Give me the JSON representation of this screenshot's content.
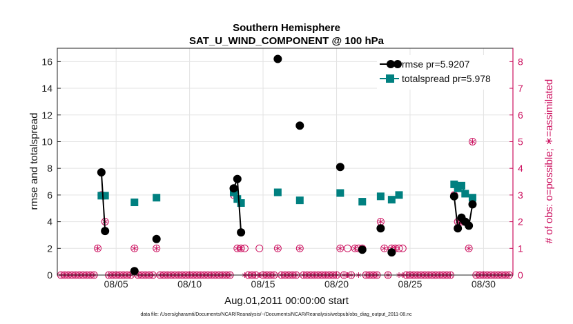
{
  "chart_data": {
    "type": "scatter",
    "title": "Southern Hemisphere",
    "subtitle": "SAT_U_WIND_COMPONENT @ 100 hPa",
    "xlabel": "Aug.01,2011 00:00:00 start",
    "ylabel": "rmse and totalspread",
    "y2label": "# of obs: o=possible; ∗=assimilated",
    "footnote": "data file: /Users/gharamti/Documents/NCAR/Reanalysis/~/Documents/NCAR/Reanalysis/webpub/obs_diag_output_2011-08.nc",
    "xlim": [
      1,
      32
    ],
    "ylim": [
      0,
      17
    ],
    "y2lim": [
      0,
      8.5
    ],
    "x_ticks": [
      5,
      10,
      15,
      20,
      25,
      30
    ],
    "x_tick_labels": [
      "08/05",
      "08/10",
      "08/15",
      "08/20",
      "08/25",
      "08/30"
    ],
    "y_ticks": [
      0,
      2,
      4,
      6,
      8,
      10,
      12,
      14,
      16
    ],
    "y_tick_labels": [
      "0",
      "2",
      "4",
      "6",
      "8",
      "10",
      "12",
      "14",
      "16"
    ],
    "y2_ticks": [
      0,
      1,
      2,
      3,
      4,
      5,
      6,
      7,
      8
    ],
    "y2_tick_labels": [
      "0",
      "1",
      "2",
      "3",
      "4",
      "5",
      "6",
      "7",
      "8"
    ],
    "grid": true,
    "legend_position": "top-right",
    "series": [
      {
        "name": "rmse",
        "legend_label": "rmse pr=5.9207",
        "color": "#000000",
        "marker": "circle",
        "x": [
          4.0,
          4.25,
          6.25,
          7.75,
          13.0,
          13.25,
          13.5,
          16.0,
          17.5,
          20.25,
          21.75,
          23.0,
          23.75,
          28.0,
          28.25,
          28.5,
          28.75,
          29.0,
          29.25
        ],
        "y": [
          7.7,
          3.3,
          0.3,
          2.7,
          6.5,
          7.2,
          3.2,
          16.2,
          11.2,
          8.1,
          1.9,
          3.5,
          1.7,
          5.9,
          3.5,
          4.3,
          4.0,
          3.7,
          5.3
        ],
        "segments": [
          [
            4.0,
            4.25
          ],
          [
            13.0,
            13.25,
            13.5
          ],
          [
            28.0,
            28.25,
            28.5,
            28.75,
            29.0,
            29.25
          ]
        ]
      },
      {
        "name": "totalspread",
        "legend_label": "totalspread pr=5.978",
        "color": "#008080",
        "marker": "square",
        "x": [
          4.0,
          4.25,
          6.25,
          7.75,
          13.0,
          13.25,
          13.5,
          16.0,
          17.5,
          20.25,
          21.75,
          23.0,
          23.75,
          24.25,
          28.0,
          28.25,
          28.5,
          28.75,
          29.25
        ],
        "y": [
          5.95,
          5.95,
          5.45,
          5.8,
          6.2,
          5.7,
          5.4,
          6.2,
          5.6,
          6.15,
          5.5,
          5.9,
          5.65,
          6.0,
          6.8,
          6.5,
          6.7,
          6.1,
          5.8
        ],
        "segments": [
          [
            28.0,
            28.25,
            28.5,
            28.75,
            29.25
          ]
        ]
      },
      {
        "name": "possible_obs",
        "color": "#cc0f5e",
        "marker": "open-circle",
        "axis": "right",
        "x": [
          1.25,
          1.5,
          1.75,
          2.0,
          2.25,
          2.5,
          2.75,
          3.0,
          3.25,
          3.5,
          3.75,
          4.0,
          4.25,
          4.5,
          4.75,
          5.0,
          5.25,
          5.5,
          5.75,
          6.0,
          6.25,
          6.5,
          6.75,
          7.0,
          7.25,
          7.5,
          7.75,
          8.0,
          8.25,
          8.5,
          8.75,
          9.0,
          9.25,
          9.5,
          9.75,
          10.0,
          10.25,
          10.5,
          10.75,
          11.0,
          11.25,
          11.5,
          11.75,
          12.0,
          12.25,
          12.5,
          12.75,
          13.0,
          13.25,
          13.5,
          13.75,
          14.0,
          14.25,
          14.5,
          14.75,
          15.0,
          15.25,
          15.5,
          15.75,
          16.0,
          16.25,
          16.5,
          16.75,
          17.0,
          17.25,
          17.5,
          17.75,
          18.0,
          18.25,
          18.5,
          18.75,
          19.0,
          19.25,
          19.5,
          19.75,
          20.0,
          20.25,
          20.5,
          20.75,
          21.0,
          21.25,
          21.5,
          21.75,
          22.0,
          22.25,
          22.5,
          22.75,
          23.0,
          23.25,
          23.5,
          23.75,
          24.0,
          24.25,
          24.5,
          24.75,
          25.0,
          25.25,
          25.5,
          25.75,
          26.0,
          26.25,
          26.5,
          26.75,
          27.0,
          27.25,
          27.5,
          27.75,
          28.0,
          28.25,
          28.5,
          28.75,
          29.0,
          29.25,
          29.5,
          29.75,
          30.0,
          30.25,
          30.5,
          30.75,
          31.0,
          31.25,
          31.5,
          31.75
        ],
        "y": [
          0,
          0,
          0,
          0,
          0,
          0,
          0,
          0,
          0,
          0,
          1,
          3,
          2,
          0,
          0,
          0,
          0,
          0,
          0,
          0,
          1,
          0,
          0,
          0,
          0,
          0,
          1,
          0,
          0,
          0,
          0,
          0,
          0,
          0,
          0,
          0,
          0,
          0,
          0,
          0,
          0,
          0,
          0,
          0,
          0,
          0,
          0,
          3,
          1,
          1,
          1,
          0,
          0,
          0,
          1,
          0,
          0,
          0,
          0,
          1,
          0,
          0,
          0,
          0,
          0,
          1,
          0,
          0,
          0,
          0,
          0,
          0,
          0,
          0,
          0,
          0,
          1,
          0,
          1,
          0,
          1,
          1,
          1,
          0,
          0,
          0,
          0,
          2,
          1,
          0,
          1,
          1,
          1,
          1,
          0,
          0,
          0,
          0,
          0,
          0,
          0,
          0,
          0,
          0,
          0,
          0,
          0,
          3,
          2,
          2,
          2,
          1,
          5,
          0,
          0,
          0,
          0,
          0,
          0,
          0,
          0,
          0,
          0
        ]
      },
      {
        "name": "assimilated_obs",
        "color": "#cc0f5e",
        "marker": "asterisk",
        "axis": "right",
        "x": [
          1.25,
          1.5,
          1.75,
          2.0,
          2.25,
          2.5,
          2.75,
          3.0,
          3.25,
          3.5,
          3.75,
          4.0,
          4.25,
          4.5,
          4.75,
          5.0,
          5.25,
          5.5,
          5.75,
          6.0,
          6.25,
          6.5,
          6.75,
          7.0,
          7.25,
          7.5,
          7.75,
          8.0,
          8.25,
          8.5,
          8.75,
          9.0,
          9.25,
          9.5,
          9.75,
          10.0,
          10.25,
          10.5,
          10.75,
          11.0,
          11.25,
          11.5,
          11.75,
          12.0,
          12.25,
          12.5,
          12.75,
          13.0,
          13.25,
          13.5,
          13.75,
          14.0,
          14.25,
          14.5,
          14.75,
          15.0,
          15.25,
          15.5,
          15.75,
          16.0,
          16.25,
          16.5,
          16.75,
          17.0,
          17.25,
          17.5,
          17.75,
          18.0,
          18.25,
          18.5,
          18.75,
          19.0,
          19.25,
          19.5,
          19.75,
          20.0,
          20.25,
          20.5,
          20.75,
          21.0,
          21.25,
          21.5,
          21.75,
          22.0,
          22.25,
          22.5,
          22.75,
          23.0,
          23.25,
          23.5,
          23.75,
          24.0,
          24.25,
          24.5,
          24.75,
          25.0,
          25.25,
          25.5,
          25.75,
          26.0,
          26.25,
          26.5,
          26.75,
          27.0,
          27.25,
          27.5,
          27.75,
          28.0,
          28.25,
          28.5,
          28.75,
          29.0,
          29.25,
          29.5,
          29.75,
          30.0,
          30.25,
          30.5,
          30.75,
          31.0,
          31.25,
          31.5,
          31.75
        ],
        "y": [
          0,
          0,
          0,
          0,
          0,
          0,
          0,
          0,
          0,
          0,
          1,
          3,
          2,
          0,
          0,
          0,
          0,
          0,
          0,
          0,
          1,
          0,
          0,
          0,
          0,
          0,
          1,
          0,
          0,
          0,
          0,
          0,
          0,
          0,
          0,
          0,
          0,
          0,
          0,
          0,
          0,
          0,
          0,
          0,
          0,
          0,
          0,
          3,
          1,
          1,
          0,
          0,
          0,
          0,
          0,
          0,
          0,
          0,
          0,
          1,
          0,
          0,
          0,
          0,
          0,
          1,
          0,
          0,
          0,
          0,
          0,
          0,
          0,
          0,
          0,
          0,
          1,
          0,
          0,
          0,
          1,
          0,
          1,
          0,
          0,
          0,
          0,
          2,
          1,
          0,
          1,
          1,
          0,
          0,
          0,
          0,
          0,
          0,
          0,
          0,
          0,
          0,
          0,
          0,
          0,
          0,
          0,
          3,
          2,
          2,
          2,
          1,
          5,
          0,
          0,
          0,
          0,
          0,
          0,
          0,
          0,
          0,
          0
        ]
      }
    ]
  }
}
